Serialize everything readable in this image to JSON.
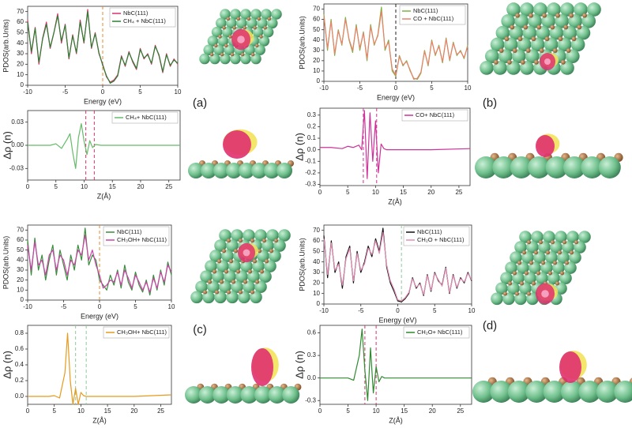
{
  "panel_labels": [
    "(a)",
    "(b)",
    "(c)",
    "(d)"
  ],
  "chart_data": [
    {
      "type": "line",
      "x_label": "Energy (eV)",
      "y_label": "PDOS(arb.Units)",
      "x": [
        -10,
        -9.5,
        -9,
        -8.5,
        -8,
        -7.5,
        -7,
        -6.5,
        -6,
        -5.5,
        -5,
        -4.5,
        -4,
        -3.5,
        -3,
        -2.5,
        -2,
        -1.5,
        -1,
        -0.5,
        0,
        0.5,
        1,
        1.5,
        2,
        2.5,
        3,
        3.5,
        4,
        4.5,
        5,
        5.5,
        6,
        6.5,
        7,
        7.5,
        8,
        8.5,
        9,
        9.5,
        10
      ],
      "series": [
        {
          "name": "NbC(111)",
          "color": "#d6336c",
          "values": [
            62,
            30,
            55,
            20,
            45,
            60,
            35,
            50,
            68,
            40,
            58,
            25,
            48,
            30,
            62,
            40,
            72,
            35,
            50,
            30,
            20,
            8,
            3,
            5,
            10,
            28,
            18,
            32,
            22,
            15,
            35,
            25,
            30,
            20,
            38,
            28,
            12,
            30,
            18,
            25,
            20
          ]
        },
        {
          "name": "CH₄ + NbC(111)",
          "color": "#2e7d32",
          "values": [
            60,
            32,
            54,
            22,
            44,
            58,
            36,
            50,
            66,
            42,
            57,
            26,
            47,
            31,
            60,
            41,
            70,
            36,
            49,
            31,
            19,
            9,
            2,
            4,
            9,
            27,
            19,
            31,
            23,
            16,
            34,
            26,
            29,
            21,
            37,
            29,
            13,
            29,
            19,
            24,
            21
          ]
        }
      ],
      "reference_lines": [
        {
          "x": 0,
          "color": "#e8892b"
        }
      ],
      "xlim": [
        -10,
        10
      ],
      "xticks": [
        -10,
        -5,
        0,
        5,
        10
      ],
      "ylim": [
        0,
        75
      ],
      "yticks": [
        0,
        10,
        20,
        30,
        40,
        50,
        60,
        70
      ]
    },
    {
      "type": "line",
      "x_label": "Z(Å)",
      "y_label": "Δρ (n)",
      "x": [
        0,
        2,
        4,
        5,
        6,
        7,
        7.5,
        8,
        8.5,
        9,
        9.5,
        10,
        10.5,
        11,
        11.5,
        12,
        13,
        15,
        20,
        27
      ],
      "series": [
        {
          "name": "CH₄+ NbC(111)",
          "color": "#66bb6a",
          "values": [
            0,
            0,
            0,
            0.002,
            -0.004,
            0.008,
            0.015,
            -0.01,
            -0.03,
            0.01,
            0.028,
            0.005,
            -0.012,
            0.006,
            -0.003,
            0.001,
            0,
            0,
            0,
            0
          ]
        }
      ],
      "reference_lines": [
        {
          "x": 10.3,
          "color": "#d6336c"
        },
        {
          "x": 11.8,
          "color": "#d6336c"
        }
      ],
      "xlim": [
        0,
        27
      ],
      "xticks": [
        0,
        5,
        10,
        15,
        20,
        25
      ],
      "ylim": [
        -0.045,
        0.045
      ],
      "yticks": [
        {
          "value": -0.03,
          "label": "-0.03"
        },
        {
          "value": 0,
          "label": "0.00"
        },
        {
          "value": 0.03,
          "label": "0.03"
        }
      ]
    },
    {
      "type": "line",
      "x_label": "Energy (eV)",
      "y_label": "PDOS(arb.Units)",
      "x": [
        -10,
        -9.5,
        -9,
        -8.5,
        -8,
        -7.5,
        -7,
        -6.5,
        -6,
        -5.5,
        -5,
        -4.5,
        -4,
        -3.5,
        -3,
        -2.5,
        -2,
        -1.5,
        -1,
        -0.5,
        0,
        0.5,
        1,
        1.5,
        2,
        2.5,
        3,
        3.5,
        4,
        4.5,
        5,
        5.5,
        6,
        6.5,
        7,
        7.5,
        8,
        8.5,
        9,
        9.5,
        10
      ],
      "series": [
        {
          "name": "NbC(111)",
          "color": "#7cb342",
          "values": [
            65,
            30,
            60,
            25,
            50,
            35,
            62,
            40,
            28,
            55,
            30,
            48,
            20,
            55,
            35,
            45,
            72,
            30,
            40,
            10,
            5,
            25,
            15,
            20,
            10,
            3,
            2,
            8,
            30,
            15,
            40,
            25,
            35,
            18,
            42,
            20,
            38,
            25,
            30,
            22,
            35
          ]
        },
        {
          "name": "CO + NbC(111)",
          "color": "#e8826a",
          "values": [
            63,
            32,
            58,
            27,
            49,
            36,
            60,
            41,
            30,
            53,
            32,
            47,
            22,
            53,
            36,
            44,
            68,
            32,
            38,
            12,
            6,
            24,
            16,
            19,
            11,
            2,
            3,
            9,
            29,
            16,
            39,
            26,
            34,
            19,
            41,
            21,
            37,
            26,
            29,
            23,
            34
          ]
        }
      ],
      "reference_lines": [
        {
          "x": 0,
          "color": "#222222"
        }
      ],
      "xlim": [
        -10,
        10
      ],
      "xticks": [
        -10,
        -5,
        0,
        5,
        10
      ],
      "ylim": [
        0,
        75
      ],
      "yticks": [
        0,
        10,
        20,
        30,
        40,
        50,
        60,
        70
      ]
    },
    {
      "type": "line",
      "x_label": "Z(Å)",
      "y_label": "Δρ (n)",
      "x": [
        0,
        2,
        4,
        5,
        6,
        7,
        7.5,
        8,
        8.5,
        9,
        9.5,
        10,
        10.5,
        11,
        11.5,
        12,
        13,
        15,
        20,
        27
      ],
      "series": [
        {
          "name": "CO+ NbC(111)",
          "color": "#cc3399",
          "values": [
            0.02,
            0.02,
            0.01,
            0.03,
            0.02,
            0.04,
            0,
            0.34,
            -0.25,
            0.32,
            -0.1,
            0.25,
            -0.2,
            0.05,
            0.01,
            0,
            0,
            0,
            0,
            0.01
          ]
        }
      ],
      "reference_lines": [
        {
          "x": 7.8,
          "color": "#cc3399"
        },
        {
          "x": 10.2,
          "color": "#cc3399"
        }
      ],
      "xlim": [
        0,
        27
      ],
      "xticks": [
        0,
        5,
        10,
        15,
        20,
        25
      ],
      "ylim": [
        -0.31,
        0.36
      ],
      "yticks": [
        {
          "value": -0.3,
          "label": "-0.3"
        },
        {
          "value": -0.2,
          "label": "-0.2"
        },
        {
          "value": -0.1,
          "label": "-0.1"
        },
        {
          "value": 0,
          "label": "0.0"
        },
        0.1,
        0.2,
        0.3
      ]
    },
    {
      "type": "line",
      "x_label": "Energy (eV)",
      "y_label": "PDOS(arb.Units)",
      "x": [
        -10,
        -9.5,
        -9,
        -8.5,
        -8,
        -7.5,
        -7,
        -6.5,
        -6,
        -5.5,
        -5,
        -4.5,
        -4,
        -3.5,
        -3,
        -2.5,
        -2,
        -1.5,
        -1,
        -0.5,
        0,
        0.5,
        1,
        1.5,
        2,
        2.5,
        3,
        3.5,
        4,
        4.5,
        5,
        5.5,
        6,
        6.5,
        7,
        7.5,
        8,
        8.5,
        9,
        9.5,
        10
      ],
      "series": [
        {
          "name": "NbC(111)",
          "color": "#388e3c",
          "values": [
            60,
            25,
            62,
            30,
            45,
            20,
            40,
            55,
            25,
            50,
            35,
            20,
            45,
            30,
            55,
            40,
            72,
            35,
            45,
            40,
            20,
            15,
            10,
            25,
            15,
            30,
            12,
            35,
            18,
            10,
            28,
            15,
            8,
            20,
            5,
            25,
            10,
            30,
            15,
            38,
            25
          ]
        },
        {
          "name": "CH₃OH+ NbC(111)",
          "color": "#cc44aa",
          "values": [
            55,
            30,
            58,
            35,
            40,
            25,
            45,
            50,
            30,
            45,
            40,
            25,
            40,
            35,
            50,
            45,
            65,
            40,
            50,
            35,
            25,
            12,
            15,
            20,
            18,
            28,
            15,
            30,
            22,
            12,
            25,
            18,
            10,
            18,
            8,
            22,
            12,
            28,
            18,
            35,
            28
          ]
        }
      ],
      "reference_lines": [
        {
          "x": 0,
          "color": "#e8892b"
        }
      ],
      "xlim": [
        -10,
        10
      ],
      "xticks": [
        -10,
        -5,
        0,
        5,
        10
      ],
      "ylim": [
        0,
        75
      ],
      "yticks": [
        0,
        10,
        20,
        30,
        40,
        50,
        60,
        70
      ]
    },
    {
      "type": "line",
      "x_label": "Z(Å)",
      "y_label": "Δρ (n)",
      "x": [
        0,
        2,
        4,
        5,
        6,
        7,
        7.5,
        8,
        8.5,
        9,
        9.5,
        10,
        10.5,
        11,
        11.5,
        12,
        13,
        15,
        20,
        27
      ],
      "series": [
        {
          "name": "CH₃OH+ NbC(111)",
          "color": "#e69a1e",
          "values": [
            0,
            0,
            0,
            0.01,
            -0.02,
            0.3,
            0.8,
            0.2,
            -0.1,
            0.1,
            -0.1,
            0.05,
            0.01,
            0,
            0,
            0,
            0,
            0,
            0,
            0.02
          ]
        }
      ],
      "reference_lines": [
        {
          "x": 9,
          "color": "#8fc99a"
        },
        {
          "x": 11,
          "color": "#8fc99a"
        }
      ],
      "xlim": [
        0,
        27
      ],
      "xticks": [
        0,
        5,
        10,
        15,
        20,
        25
      ],
      "ylim": [
        -0.1,
        0.9
      ],
      "yticks": [
        {
          "value": 0,
          "label": "0.0"
        },
        0.2,
        0.4,
        0.6,
        0.8
      ]
    },
    {
      "type": "line",
      "x_label": "Energy (eV)",
      "y_label": "PDOS(arb.Units)",
      "x": [
        -10,
        -9.5,
        -9,
        -8.5,
        -8,
        -7.5,
        -7,
        -6.5,
        -6,
        -5.5,
        -5,
        -4.5,
        -4,
        -3.5,
        -3,
        -2.5,
        -2,
        -1.5,
        -1,
        -0.5,
        0,
        0.5,
        1,
        1.5,
        2,
        2.5,
        3,
        3.5,
        4,
        4.5,
        5,
        5.5,
        6,
        6.5,
        7,
        7.5,
        8,
        8.5,
        9,
        9.5,
        10
      ],
      "series": [
        {
          "name": "NbC(111)",
          "color": "#111111",
          "values": [
            65,
            25,
            60,
            30,
            40,
            15,
            45,
            55,
            20,
            50,
            30,
            40,
            55,
            45,
            62,
            50,
            72,
            35,
            20,
            12,
            3,
            2,
            5,
            10,
            25,
            15,
            20,
            8,
            28,
            12,
            30,
            22,
            18,
            35,
            10,
            28,
            15,
            25,
            20,
            30,
            22
          ]
        },
        {
          "name": "CH₂O + NbC(111)",
          "color": "#e38fb6",
          "values": [
            62,
            28,
            58,
            32,
            38,
            18,
            43,
            53,
            22,
            48,
            32,
            38,
            53,
            47,
            60,
            48,
            68,
            37,
            22,
            14,
            4,
            3,
            6,
            11,
            24,
            16,
            19,
            9,
            27,
            13,
            29,
            23,
            17,
            34,
            11,
            27,
            16,
            24,
            21,
            29,
            23
          ]
        }
      ],
      "reference_lines": [
        {
          "x": 0.5,
          "color": "#8fc99a"
        }
      ],
      "xlim": [
        -10,
        10
      ],
      "xticks": [
        -10,
        -5,
        0,
        5,
        10
      ],
      "ylim": [
        0,
        75
      ],
      "yticks": [
        0,
        10,
        20,
        30,
        40,
        50,
        60,
        70
      ]
    },
    {
      "type": "line",
      "x_label": "Z(Å)",
      "y_label": "Δρ (n)",
      "x": [
        0,
        2,
        4,
        5,
        6,
        7,
        7.5,
        8,
        8.5,
        9,
        9.5,
        10,
        10.5,
        11,
        11.5,
        12,
        13,
        15,
        20,
        27
      ],
      "series": [
        {
          "name": "CH₂O+ NbC(111)",
          "color": "#2e8b2e",
          "values": [
            0,
            0,
            0,
            0,
            -0.03,
            0.3,
            0.65,
            0.1,
            -0.3,
            0.4,
            -0.2,
            0.15,
            -0.05,
            0.02,
            0,
            0,
            0,
            0,
            0,
            0
          ]
        }
      ],
      "reference_lines": [
        {
          "x": 8,
          "color": "#d6336c"
        },
        {
          "x": 10,
          "color": "#d6336c"
        }
      ],
      "xlim": [
        0,
        27
      ],
      "xticks": [
        0,
        5,
        10,
        15,
        20,
        25
      ],
      "ylim": [
        -0.35,
        0.7
      ],
      "yticks": [
        {
          "value": -0.3,
          "label": "-0.3"
        },
        {
          "value": 0,
          "label": "0.0"
        },
        0.3,
        0.6
      ]
    }
  ]
}
